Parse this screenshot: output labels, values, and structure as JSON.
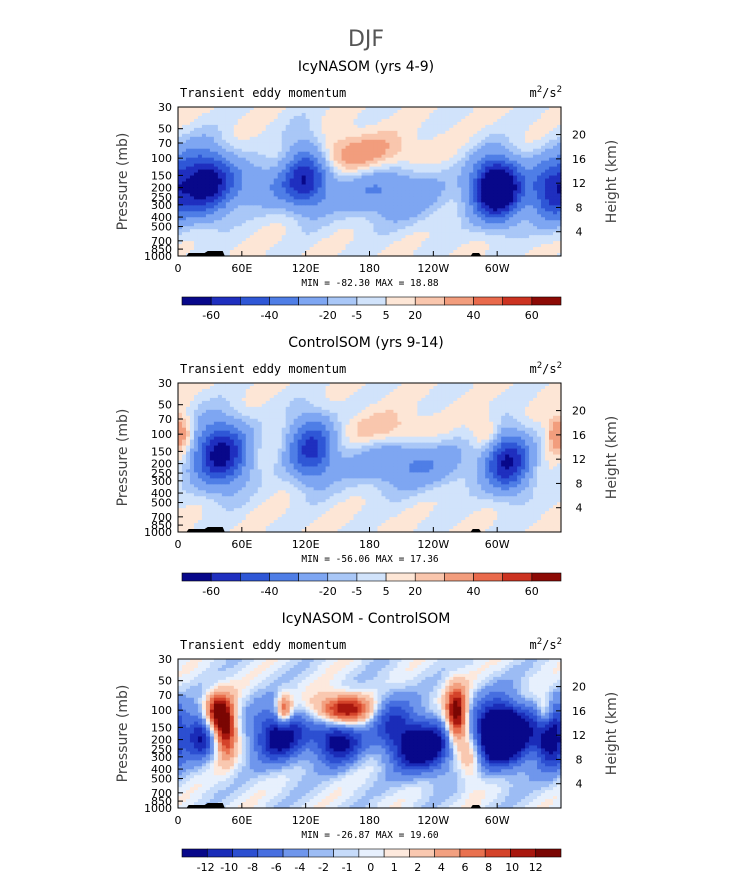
{
  "figure": {
    "title": "DJF"
  },
  "palettes": {
    "momentum": [
      "#08088a",
      "#1f2fbf",
      "#2f57d6",
      "#4f7ee6",
      "#7ea6f2",
      "#a9c7f7",
      "#d1e3fb",
      "#fde6d6",
      "#f9c6ad",
      "#f29d7d",
      "#e96a4c",
      "#cc3321",
      "#8c0a05"
    ],
    "difference": [
      "#08088a",
      "#1a2cb8",
      "#2c4fd1",
      "#476fe0",
      "#6f96ec",
      "#9cbcf4",
      "#c6dbfa",
      "#e7f0fd",
      "#fde9dd",
      "#f9c8b0",
      "#f2a080",
      "#e9714f",
      "#d4432a",
      "#a8170e",
      "#7a0603"
    ]
  },
  "axes": {
    "pressure_ticks": [
      "30",
      "50",
      "70",
      "100",
      "150",
      "200",
      "250",
      "300",
      "400",
      "500",
      "700",
      "850",
      "1000"
    ],
    "pressure_values": [
      30,
      50,
      70,
      100,
      150,
      200,
      250,
      300,
      400,
      500,
      700,
      850,
      1000
    ],
    "height_ticks": [
      "4",
      "8",
      "12",
      "16",
      "20"
    ],
    "height_values": [
      4,
      8,
      12,
      16,
      20
    ],
    "lon_ticks": [
      "0",
      "60E",
      "120E",
      "180",
      "120W",
      "60W"
    ],
    "lon_values": [
      0,
      60,
      120,
      180,
      240,
      300
    ],
    "ylabel": "Pressure (mb)",
    "y2label": "Height (km)"
  },
  "chart_data": [
    {
      "type": "heatmap",
      "title": "IcyNASOM (yrs 4-9)",
      "subtitle_left": "Transient eddy momentum",
      "units_base": "m",
      "units_sup1": "2",
      "units_mid": "/s",
      "units_sup2": "2",
      "min_label": "MIN = -82.30   MAX =  18.88",
      "min": -82.3,
      "max": 18.88,
      "xlim": [
        0,
        360
      ],
      "ylim": [
        1000,
        30
      ],
      "levels": [
        -60,
        -50,
        -40,
        -30,
        -20,
        -10,
        -5,
        0,
        5,
        10,
        20,
        30,
        40,
        50,
        60
      ],
      "colorbar_labels": [
        "-60",
        "-40",
        "-20",
        "-5",
        "5",
        "20",
        "40",
        "60"
      ],
      "palette": "momentum",
      "features": [
        {
          "lon": 25,
          "p": 175,
          "amp": -55,
          "wl": 18,
          "wp": 0.55
        },
        {
          "lon": 120,
          "p": 140,
          "amp": -38,
          "wl": 14,
          "wp": 0.6
        },
        {
          "lon": 200,
          "p": 215,
          "amp": -22,
          "wl": 35,
          "wp": 0.5
        },
        {
          "lon": 300,
          "p": 205,
          "amp": -80,
          "wl": 16,
          "wp": 0.5
        },
        {
          "lon": 350,
          "p": 215,
          "amp": -40,
          "wl": 14,
          "wp": 0.5
        },
        {
          "lon": 170,
          "p": 95,
          "amp": 18,
          "wl": 40,
          "wp": 0.35
        },
        {
          "lon": 90,
          "p": 185,
          "amp": -18,
          "wl": 40,
          "wp": 0.4
        }
      ]
    },
    {
      "type": "heatmap",
      "title": "ControlSOM (yrs 9-14)",
      "subtitle_left": "Transient eddy momentum",
      "units_base": "m",
      "units_sup1": "2",
      "units_mid": "/s",
      "units_sup2": "2",
      "min_label": "MIN = -56.06   MAX =  17.36",
      "min": -56.06,
      "max": 17.36,
      "xlim": [
        0,
        360
      ],
      "ylim": [
        1000,
        30
      ],
      "levels": [
        -60,
        -50,
        -40,
        -30,
        -20,
        -10,
        -5,
        0,
        5,
        10,
        20,
        30,
        40,
        50,
        60
      ],
      "colorbar_labels": [
        "-60",
        "-40",
        "-20",
        "-5",
        "5",
        "20",
        "40",
        "60"
      ],
      "palette": "momentum",
      "features": [
        {
          "lon": 40,
          "p": 160,
          "amp": -55,
          "wl": 18,
          "wp": 0.55
        },
        {
          "lon": 125,
          "p": 140,
          "amp": -42,
          "wl": 15,
          "wp": 0.55
        },
        {
          "lon": 215,
          "p": 195,
          "amp": -22,
          "wl": 40,
          "wp": 0.45
        },
        {
          "lon": 310,
          "p": 190,
          "amp": -50,
          "wl": 15,
          "wp": 0.5
        },
        {
          "lon": 5,
          "p": 100,
          "amp": 16,
          "wl": 8,
          "wp": 0.3
        },
        {
          "lon": 355,
          "p": 100,
          "amp": 14,
          "wl": 7,
          "wp": 0.3
        },
        {
          "lon": 200,
          "p": 95,
          "amp": 12,
          "wl": 30,
          "wp": 0.3
        },
        {
          "lon": 290,
          "p": 100,
          "amp": 14,
          "wl": 10,
          "wp": 0.3
        }
      ]
    },
    {
      "type": "heatmap",
      "title": "IcyNASOM - ControlSOM",
      "subtitle_left": "Transient eddy momentum",
      "units_base": "m",
      "units_sup1": "2",
      "units_mid": "/s",
      "units_sup2": "2",
      "min_label": "MIN = -26.87   MAX =  19.60",
      "min": -26.87,
      "max": 19.6,
      "xlim": [
        0,
        360
      ],
      "ylim": [
        1000,
        30
      ],
      "levels": [
        -12,
        -10,
        -8,
        -6,
        -4,
        -2,
        -1,
        0,
        1,
        2,
        4,
        6,
        8,
        10,
        12
      ],
      "colorbar_labels": [
        "-12",
        "-10",
        "-8",
        "-6",
        "-4",
        "-2",
        "-1",
        "0",
        "1",
        "2",
        "4",
        "6",
        "8",
        "10",
        "12"
      ],
      "palette": "difference",
      "features": [
        {
          "lon": 45,
          "p": 150,
          "amp": 14,
          "wl": 7,
          "wp": 0.45
        },
        {
          "lon": 35,
          "p": 105,
          "amp": 10,
          "wl": 7,
          "wp": 0.3
        },
        {
          "lon": 20,
          "p": 180,
          "amp": -10,
          "wl": 10,
          "wp": 0.4
        },
        {
          "lon": 95,
          "p": 180,
          "amp": -12,
          "wl": 18,
          "wp": 0.45
        },
        {
          "lon": 100,
          "p": 100,
          "amp": 10,
          "wl": 5,
          "wp": 0.25
        },
        {
          "lon": 155,
          "p": 100,
          "amp": 14,
          "wl": 18,
          "wp": 0.25
        },
        {
          "lon": 150,
          "p": 200,
          "amp": -12,
          "wl": 16,
          "wp": 0.4
        },
        {
          "lon": 230,
          "p": 230,
          "amp": -14,
          "wl": 20,
          "wp": 0.45
        },
        {
          "lon": 262,
          "p": 115,
          "amp": 16,
          "wl": 7,
          "wp": 0.45
        },
        {
          "lon": 305,
          "p": 175,
          "amp": -22,
          "wl": 18,
          "wp": 0.5
        },
        {
          "lon": 350,
          "p": 180,
          "amp": -14,
          "wl": 10,
          "wp": 0.5
        },
        {
          "lon": 345,
          "p": 110,
          "amp": 8,
          "wl": 6,
          "wp": 0.3
        },
        {
          "lon": 200,
          "p": 130,
          "amp": -6,
          "wl": 14,
          "wp": 0.5
        },
        {
          "lon": 275,
          "p": 300,
          "amp": 6,
          "wl": 8,
          "wp": 0.4
        }
      ]
    }
  ]
}
